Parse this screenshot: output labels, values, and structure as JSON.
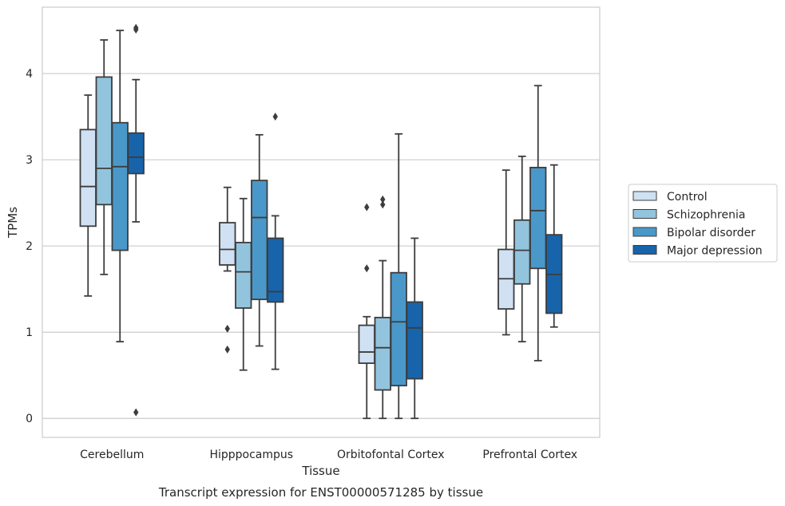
{
  "chart_data": {
    "type": "box",
    "title": "",
    "caption": "Transcript expression for ENST00000571285 by tissue",
    "xlabel": "Tissue",
    "ylabel": "TPMs",
    "ylim": [
      -0.22,
      4.77
    ],
    "yticks": [
      0,
      1,
      2,
      3,
      4
    ],
    "grid": "horizontal",
    "legend_position": "right",
    "categories": [
      "Cerebellum",
      "Hipppocampus",
      "Orbitofontal Cortex",
      "Prefrontal Cortex"
    ],
    "series": [
      {
        "name": "Control",
        "color": "#cfe1f2",
        "boxes": [
          {
            "whislo": 1.42,
            "q1": 2.23,
            "med": 2.69,
            "q3": 3.35,
            "whishi": 3.75,
            "fliers": []
          },
          {
            "whislo": 1.71,
            "q1": 1.78,
            "med": 1.96,
            "q3": 2.27,
            "whishi": 2.68,
            "fliers": [
              1.04,
              0.8
            ]
          },
          {
            "whislo": 0.0,
            "q1": 0.64,
            "med": 0.77,
            "q3": 1.08,
            "whishi": 1.18,
            "fliers": [
              2.45,
              1.74
            ]
          },
          {
            "whislo": 0.97,
            "q1": 1.27,
            "med": 1.62,
            "q3": 1.96,
            "whishi": 2.88,
            "fliers": []
          }
        ]
      },
      {
        "name": "Schizophrenia",
        "color": "#93c4de",
        "boxes": [
          {
            "whislo": 1.67,
            "q1": 2.48,
            "med": 2.9,
            "q3": 3.96,
            "whishi": 4.39,
            "fliers": []
          },
          {
            "whislo": 0.56,
            "q1": 1.28,
            "med": 1.7,
            "q3": 2.04,
            "whishi": 2.55,
            "fliers": []
          },
          {
            "whislo": 0.0,
            "q1": 0.33,
            "med": 0.82,
            "q3": 1.17,
            "whishi": 1.83,
            "fliers": [
              2.54,
              2.48
            ]
          },
          {
            "whislo": 0.89,
            "q1": 1.56,
            "med": 1.95,
            "q3": 2.3,
            "whishi": 3.04,
            "fliers": []
          }
        ]
      },
      {
        "name": "Bipolar disorder",
        "color": "#4a98c9",
        "boxes": [
          {
            "whislo": 0.89,
            "q1": 1.95,
            "med": 2.92,
            "q3": 3.43,
            "whishi": 4.5,
            "fliers": []
          },
          {
            "whislo": 0.84,
            "q1": 1.38,
            "med": 2.33,
            "q3": 2.76,
            "whishi": 3.29,
            "fliers": []
          },
          {
            "whislo": 0.0,
            "q1": 0.38,
            "med": 1.12,
            "q3": 1.69,
            "whishi": 3.3,
            "fliers": []
          },
          {
            "whislo": 0.67,
            "q1": 1.74,
            "med": 2.41,
            "q3": 2.91,
            "whishi": 3.86,
            "fliers": []
          }
        ]
      },
      {
        "name": "Major depression",
        "color": "#1764ab",
        "boxes": [
          {
            "whislo": 2.28,
            "q1": 2.84,
            "med": 3.03,
            "q3": 3.31,
            "whishi": 3.93,
            "fliers": [
              4.53,
              4.51,
              0.07
            ]
          },
          {
            "whislo": 0.57,
            "q1": 1.35,
            "med": 1.47,
            "q3": 2.09,
            "whishi": 2.35,
            "fliers": [
              3.5
            ]
          },
          {
            "whislo": 0.0,
            "q1": 0.46,
            "med": 1.05,
            "q3": 1.35,
            "whishi": 2.09,
            "fliers": []
          },
          {
            "whislo": 1.06,
            "q1": 1.22,
            "med": 1.67,
            "q3": 2.13,
            "whishi": 2.94,
            "fliers": []
          }
        ]
      }
    ]
  }
}
